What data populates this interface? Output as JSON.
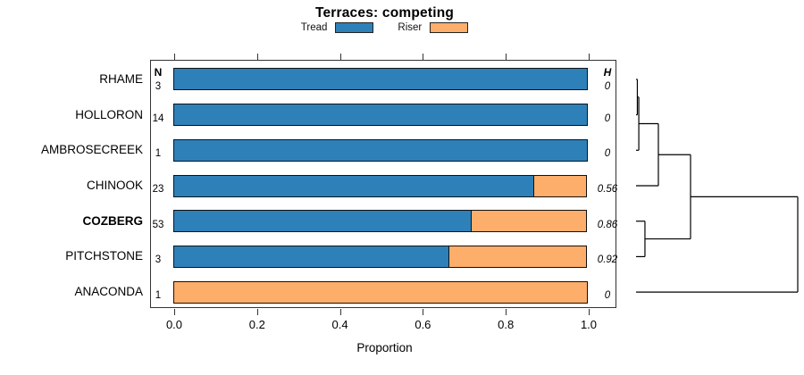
{
  "title": "Terraces: competing",
  "xlabel": "Proportion",
  "columns": {
    "n": "N",
    "h": "H"
  },
  "legend": [
    {
      "label": "Tread",
      "color": "#2E80B9"
    },
    {
      "label": "Riser",
      "color": "#FCAE6A"
    }
  ],
  "colors": {
    "tread": "#2E80B9",
    "riser": "#FCAE6A",
    "bar_border": "#111111",
    "axis": "#333333"
  },
  "chart_data": {
    "type": "bar",
    "orientation": "horizontal",
    "stacked": true,
    "title": "Terraces: competing",
    "xlabel": "Proportion",
    "xlim": [
      0,
      1
    ],
    "xticks": [
      "0.0",
      "0.2",
      "0.4",
      "0.6",
      "0.8",
      "1.0"
    ],
    "grid": false,
    "legend_position": "top",
    "categories": [
      "RHAME",
      "HOLLORON",
      "AMBROSECREEK",
      "CHINOOK",
      "COZBERG",
      "PITCHSTONE",
      "ANACONDA"
    ],
    "bold_category": "COZBERG",
    "series": [
      {
        "name": "Tread",
        "color": "#2E80B9",
        "values": [
          1,
          1,
          1,
          0.87,
          0.72,
          0.667,
          0
        ]
      },
      {
        "name": "Riser",
        "color": "#FCAE6A",
        "values": [
          0,
          0,
          0,
          0.13,
          0.28,
          0.333,
          1
        ]
      }
    ],
    "n_values": [
      "3",
      "14",
      "1",
      "23",
      "53",
      "3",
      "1"
    ],
    "h_values": [
      "0",
      "0",
      "0",
      "0.56",
      "0.86",
      "0.92",
      "0"
    ],
    "dendrogram": {
      "height_scale": "relative",
      "merges": [
        {
          "id": "c1",
          "children": [
            "RHAME",
            "HOLLORON"
          ],
          "height": 0.008
        },
        {
          "id": "c2",
          "children": [
            "c1",
            "AMBROSECREEK"
          ],
          "height": 0.017
        },
        {
          "id": "c4",
          "children": [
            "COZBERG",
            "PITCHSTONE"
          ],
          "height": 0.055
        },
        {
          "id": "c3",
          "children": [
            "c2",
            "CHINOOK"
          ],
          "height": 0.138
        },
        {
          "id": "c5",
          "children": [
            "c3",
            "c4"
          ],
          "height": 0.337
        },
        {
          "id": "c6",
          "children": [
            "c5",
            "ANACONDA"
          ],
          "height": 1.0
        }
      ]
    }
  }
}
